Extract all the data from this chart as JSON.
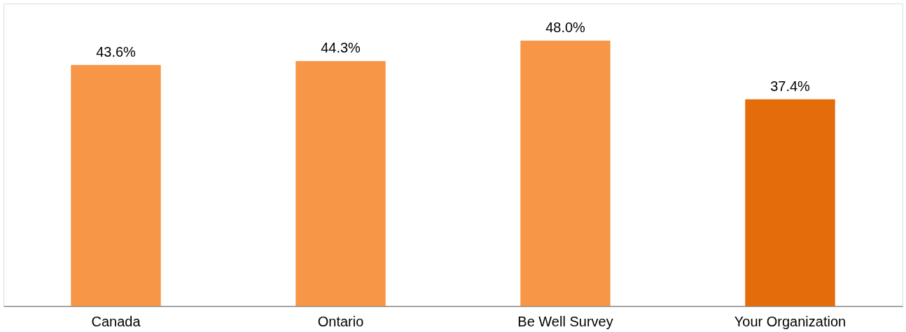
{
  "chart_data": {
    "type": "bar",
    "categories": [
      "Canada",
      "Ontario",
      "Be Well Survey",
      "Your Organization"
    ],
    "values": [
      43.6,
      44.3,
      48.0,
      37.4
    ],
    "colors": [
      "#f79646",
      "#f79646",
      "#f79646",
      "#e46c0a"
    ],
    "value_labels": [
      "43.6%",
      "44.3%",
      "48.0%",
      "37.4%"
    ]
  }
}
